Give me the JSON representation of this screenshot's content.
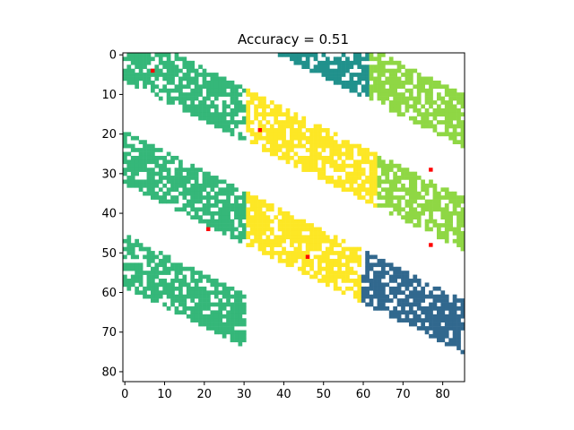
{
  "chart_data": {
    "type": "heatmap",
    "title": "Accuracy = 0.51",
    "xlabel": "",
    "ylabel": "",
    "grid_size": {
      "cols": 86,
      "rows": 83
    },
    "xlim": [
      -0.5,
      85.5
    ],
    "ylim": [
      82.5,
      -0.5
    ],
    "y_axis_inverted": true,
    "x_ticks": [
      0,
      10,
      20,
      30,
      40,
      50,
      60,
      70,
      80
    ],
    "y_ticks": [
      0,
      10,
      20,
      30,
      40,
      50,
      60,
      70,
      80
    ],
    "grid": false,
    "background_color": "#ffffff",
    "pixel_density": 0.55,
    "classes": [
      {
        "id": 0,
        "color": "#463480",
        "stripe_offset": -52,
        "x_range": [
          0,
          34
        ]
      },
      {
        "id": 1,
        "color": "#21918c",
        "stripe_offset": -26,
        "x_range": [
          14,
          61
        ]
      },
      {
        "id": 2,
        "color": "#8fd744",
        "stripe_offset": -26,
        "x_range": [
          60,
          85
        ]
      },
      {
        "id": 3,
        "color": "#35b779",
        "stripe_offset": 0,
        "x_range": [
          0,
          30
        ]
      },
      {
        "id": 4,
        "color": "#fde725",
        "stripe_offset": 0,
        "x_range": [
          26,
          63
        ]
      },
      {
        "id": 5,
        "color": "#8fd744",
        "stripe_offset": 0,
        "x_range": [
          55,
          85
        ]
      },
      {
        "id": 6,
        "color": "#31688e",
        "stripe_offset": 26,
        "x_range": [
          60,
          85
        ]
      },
      {
        "id": 7,
        "color": "#35b779",
        "stripe_offset": 26,
        "x_range": [
          0,
          30
        ]
      },
      {
        "id": 8,
        "color": "#fde725",
        "stripe_offset": 26,
        "x_range": [
          30,
          62
        ]
      },
      {
        "id": 9,
        "color": "#35b779",
        "stripe_offset": 52,
        "x_range": [
          0,
          30
        ]
      }
    ],
    "stripe_slope": -0.5,
    "stripe_half_width": 6.5,
    "centers": {
      "color": "#ff0000",
      "points": [
        {
          "x": 7,
          "y": 4
        },
        {
          "x": 34,
          "y": 19
        },
        {
          "x": 77,
          "y": 29
        },
        {
          "x": 21,
          "y": 44
        },
        {
          "x": 46,
          "y": 51
        },
        {
          "x": 77,
          "y": 48
        }
      ]
    }
  }
}
